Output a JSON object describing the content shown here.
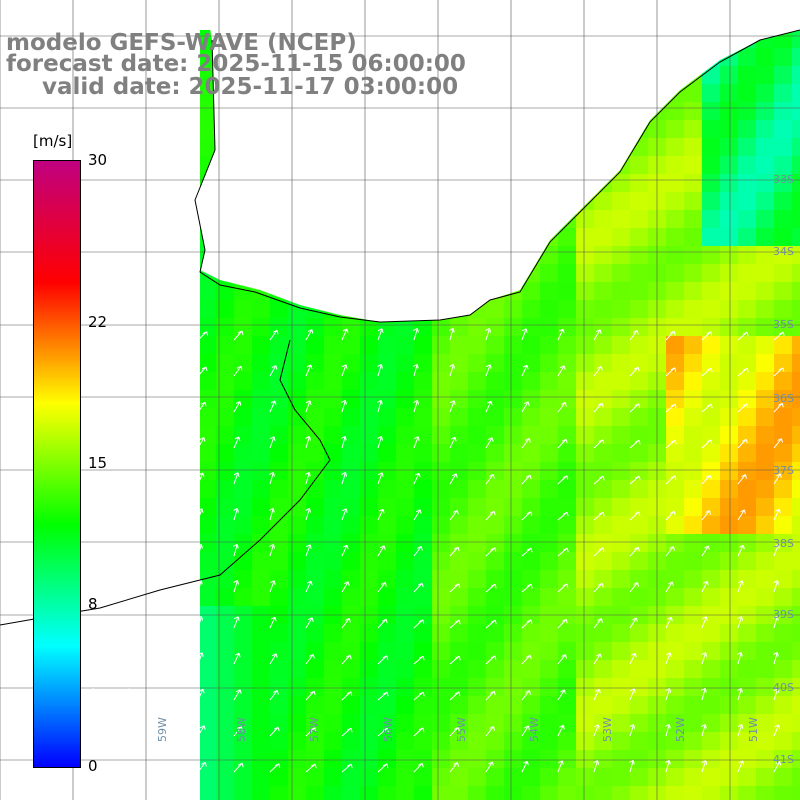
{
  "title": {
    "line1": "modelo GEFS-WAVE (NCEP)",
    "line2": "forecast date: 2025-11-15 06:00:00",
    "line3": "valid date: 2025-11-17 03:00:00"
  },
  "colorbar": {
    "units": "[m/s]",
    "min": 0,
    "max": 30,
    "tick_labels": [
      "30",
      "22",
      "15",
      "8",
      "0"
    ],
    "tick_values": [
      30,
      22,
      15,
      8,
      0
    ],
    "colors": [
      "#0000ff",
      "#00ffff",
      "#00ff00",
      "#ffff00",
      "#ff0000",
      "#c00080"
    ]
  },
  "axes": {
    "lat_labels": [
      "33S",
      "34S",
      "35S",
      "36S",
      "37S",
      "38S",
      "39S",
      "40S",
      "41S"
    ],
    "lon_labels": [
      "59W",
      "58W",
      "57W",
      "56W",
      "55W",
      "54W",
      "53W",
      "52W",
      "51W"
    ]
  },
  "map": {
    "region": "Rio de la Plata / Uruguay coast",
    "field": "wind speed",
    "land_color": "#ffffff",
    "grid": true
  }
}
